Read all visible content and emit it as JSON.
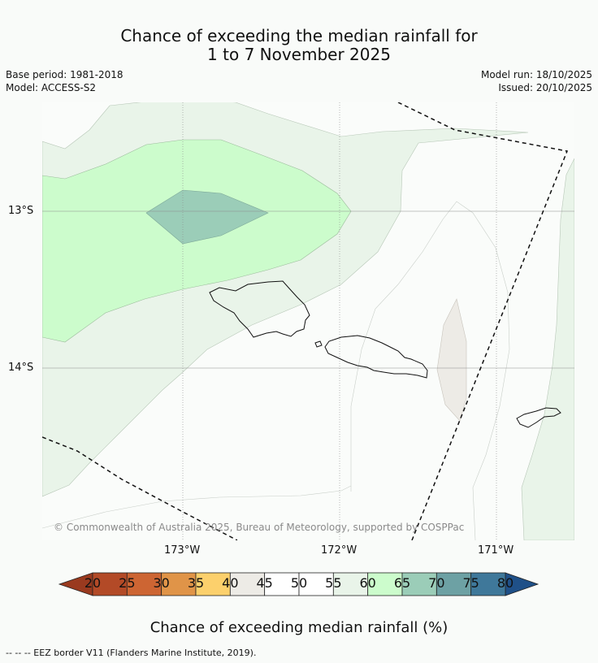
{
  "title_line1": "Chance of exceeding the median rainfall for",
  "title_line2": "1 to 7 November 2025",
  "base_period": "Base period: 1981-2018",
  "model": "Model: ACCESS-S2",
  "model_run": "Model run: 18/10/2025",
  "issued": "Issued: 20/10/2025",
  "lat_labels": [
    "13°S",
    "14°S"
  ],
  "lon_labels": [
    "173°W",
    "172°W",
    "171°W"
  ],
  "copyright": "© Commonwealth of Australia 2025, Bureau of Meteorology, supported by COSPPac",
  "colorbar": {
    "ticks": [
      "20",
      "25",
      "30",
      "35",
      "40",
      "45",
      "50",
      "55",
      "60",
      "65",
      "70",
      "75",
      "80"
    ],
    "colors": [
      "#b34a27",
      "#cd6533",
      "#e09448",
      "#fcd06c",
      "#edebe6",
      "#ffffff",
      "#ffffff",
      "#e9f4e9",
      "#ccfccc",
      "#9bcdb8",
      "#6da1a4",
      "#3f789a"
    ],
    "under_color": "#9a3a1f",
    "over_color": "#1f5088",
    "title": "Chance of exceeding median rainfall (%)"
  },
  "footer": "--  --  -- EEZ border V11 (Flanders Marine Institute, 2019)."
}
